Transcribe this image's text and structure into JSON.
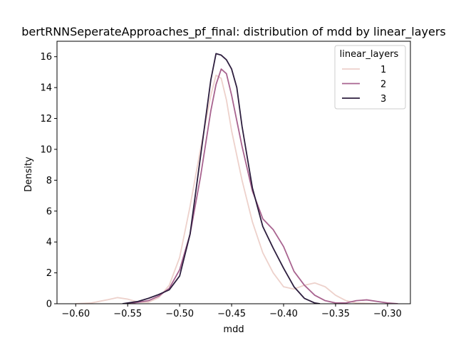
{
  "chart_data": {
    "type": "line",
    "title": "bertRNNSeperateApproaches_pf_final: distribution of mdd by linear_layers",
    "xlabel": "mdd",
    "ylabel": "Density",
    "xlim": [
      -0.618,
      -0.278
    ],
    "ylim": [
      0,
      17
    ],
    "xticks": [
      -0.6,
      -0.55,
      -0.5,
      -0.45,
      -0.4,
      -0.35,
      -0.3
    ],
    "xtick_labels": [
      "−0.60",
      "−0.55",
      "−0.50",
      "−0.45",
      "−0.40",
      "−0.35",
      "−0.30"
    ],
    "yticks": [
      0,
      2,
      4,
      6,
      8,
      10,
      12,
      14,
      16
    ],
    "ytick_labels": [
      "0",
      "2",
      "4",
      "6",
      "8",
      "10",
      "12",
      "14",
      "16"
    ],
    "grid": false,
    "legend": {
      "title": "linear_layers",
      "placement": "top-right"
    },
    "series": [
      {
        "name": "1",
        "color": "#edd1cb",
        "points": [
          [
            -0.6,
            0.0
          ],
          [
            -0.585,
            0.05
          ],
          [
            -0.57,
            0.25
          ],
          [
            -0.56,
            0.4
          ],
          [
            -0.55,
            0.3
          ],
          [
            -0.54,
            0.1
          ],
          [
            -0.53,
            0.1
          ],
          [
            -0.52,
            0.4
          ],
          [
            -0.51,
            1.2
          ],
          [
            -0.5,
            3.0
          ],
          [
            -0.49,
            6.3
          ],
          [
            -0.48,
            10.0
          ],
          [
            -0.47,
            13.5
          ],
          [
            -0.465,
            14.8
          ],
          [
            -0.46,
            14.6
          ],
          [
            -0.455,
            13.2
          ],
          [
            -0.45,
            11.2
          ],
          [
            -0.44,
            8.0
          ],
          [
            -0.43,
            5.3
          ],
          [
            -0.42,
            3.3
          ],
          [
            -0.41,
            2.0
          ],
          [
            -0.4,
            1.1
          ],
          [
            -0.39,
            0.95
          ],
          [
            -0.38,
            1.2
          ],
          [
            -0.37,
            1.35
          ],
          [
            -0.36,
            1.1
          ],
          [
            -0.35,
            0.55
          ],
          [
            -0.34,
            0.2
          ],
          [
            -0.33,
            0.05
          ],
          [
            -0.31,
            0.0
          ]
        ]
      },
      {
        "name": "2",
        "color": "#a8638f",
        "points": [
          [
            -0.55,
            0.0
          ],
          [
            -0.54,
            0.1
          ],
          [
            -0.53,
            0.2
          ],
          [
            -0.52,
            0.5
          ],
          [
            -0.51,
            1.0
          ],
          [
            -0.5,
            2.2
          ],
          [
            -0.49,
            4.5
          ],
          [
            -0.48,
            8.2
          ],
          [
            -0.47,
            12.5
          ],
          [
            -0.465,
            14.2
          ],
          [
            -0.46,
            15.2
          ],
          [
            -0.455,
            14.9
          ],
          [
            -0.45,
            13.5
          ],
          [
            -0.44,
            10.2
          ],
          [
            -0.43,
            7.3
          ],
          [
            -0.42,
            5.5
          ],
          [
            -0.41,
            4.8
          ],
          [
            -0.4,
            3.7
          ],
          [
            -0.39,
            2.1
          ],
          [
            -0.38,
            1.2
          ],
          [
            -0.37,
            0.55
          ],
          [
            -0.36,
            0.2
          ],
          [
            -0.35,
            0.05
          ],
          [
            -0.34,
            0.05
          ],
          [
            -0.33,
            0.2
          ],
          [
            -0.32,
            0.25
          ],
          [
            -0.31,
            0.15
          ],
          [
            -0.3,
            0.05
          ],
          [
            -0.29,
            0.0
          ]
        ]
      },
      {
        "name": "3",
        "color": "#2d1e3e",
        "points": [
          [
            -0.555,
            0.0
          ],
          [
            -0.54,
            0.15
          ],
          [
            -0.53,
            0.35
          ],
          [
            -0.52,
            0.6
          ],
          [
            -0.51,
            0.9
          ],
          [
            -0.5,
            1.8
          ],
          [
            -0.49,
            4.5
          ],
          [
            -0.48,
            9.5
          ],
          [
            -0.47,
            14.5
          ],
          [
            -0.465,
            16.2
          ],
          [
            -0.46,
            16.1
          ],
          [
            -0.455,
            15.8
          ],
          [
            -0.45,
            15.2
          ],
          [
            -0.445,
            14.0
          ],
          [
            -0.44,
            11.5
          ],
          [
            -0.43,
            7.5
          ],
          [
            -0.42,
            5.0
          ],
          [
            -0.41,
            3.6
          ],
          [
            -0.4,
            2.3
          ],
          [
            -0.39,
            1.1
          ],
          [
            -0.38,
            0.35
          ],
          [
            -0.37,
            0.05
          ],
          [
            -0.365,
            0.0
          ]
        ]
      }
    ]
  }
}
